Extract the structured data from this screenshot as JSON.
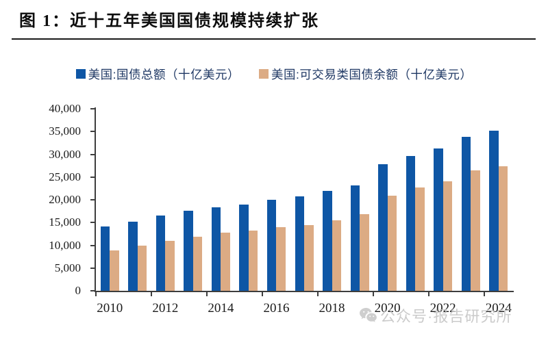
{
  "figure": {
    "title": "图 1：近十五年美国国债规模持续扩张"
  },
  "legend": {
    "items": [
      {
        "label": "美国:国债总额（十亿美元）",
        "color": "#0E56A5"
      },
      {
        "label": "美国:可交易类国债余额（十亿美元）",
        "color": "#DCAB84"
      }
    ]
  },
  "watermark": {
    "icon": "wechat-icon",
    "text": "公众号·报告研究所",
    "color": "#c2c2c2"
  },
  "chart_data": {
    "type": "bar",
    "title": "",
    "xlabel": "",
    "ylabel": "",
    "categories": [
      "2010",
      "2011",
      "2012",
      "2013",
      "2014",
      "2015",
      "2016",
      "2017",
      "2018",
      "2019",
      "2020",
      "2021",
      "2022",
      "2023",
      "2024"
    ],
    "series": [
      {
        "name": "美国:国债总额（十亿美元）",
        "color": "#0E56A5",
        "values": [
          14100,
          15200,
          16600,
          17600,
          18300,
          19000,
          20000,
          20700,
          22000,
          23200,
          27800,
          29600,
          31300,
          33900,
          35200
        ]
      },
      {
        "name": "美国:可交易类国债余额（十亿美元）",
        "color": "#DCAB84",
        "values": [
          8900,
          9950,
          11050,
          11950,
          12800,
          13300,
          14050,
          14500,
          15500,
          16850,
          20950,
          22650,
          24000,
          26450,
          27300
        ]
      }
    ],
    "ylim": [
      0,
      40000
    ],
    "ytick_step": 5000,
    "ytick_labels": [
      "0",
      "5,000",
      "10,000",
      "15,000",
      "20,000",
      "25,000",
      "30,000",
      "35,000",
      "40,000"
    ],
    "xtick_labels": [
      "2010",
      "2012",
      "2014",
      "2016",
      "2018",
      "2020",
      "2022",
      "2024"
    ],
    "grid": false,
    "legend_position": "top"
  }
}
